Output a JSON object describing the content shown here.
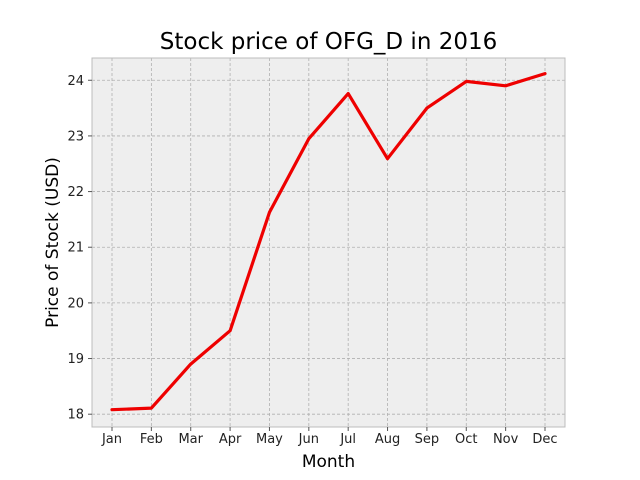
{
  "chart_data": {
    "type": "line",
    "title": "Stock price of OFG_D in 2016",
    "xlabel": "Month",
    "ylabel": "Price of Stock (USD)",
    "categories": [
      "Jan",
      "Feb",
      "Mar",
      "Apr",
      "May",
      "Jun",
      "Jul",
      "Aug",
      "Sep",
      "Oct",
      "Nov",
      "Dec"
    ],
    "series": [
      {
        "values": [
          18.08,
          18.11,
          18.9,
          19.5,
          21.63,
          22.95,
          23.76,
          22.59,
          23.5,
          23.98,
          23.9,
          24.12
        ],
        "color": "#ee0000"
      }
    ],
    "ylim": [
      17.77,
      24.4
    ],
    "yticks": [
      18,
      19,
      20,
      21,
      22,
      23,
      24
    ],
    "grid": true,
    "legend": "none",
    "plot_background": "#eeeeee",
    "grid_color": "#b0b0b0"
  }
}
